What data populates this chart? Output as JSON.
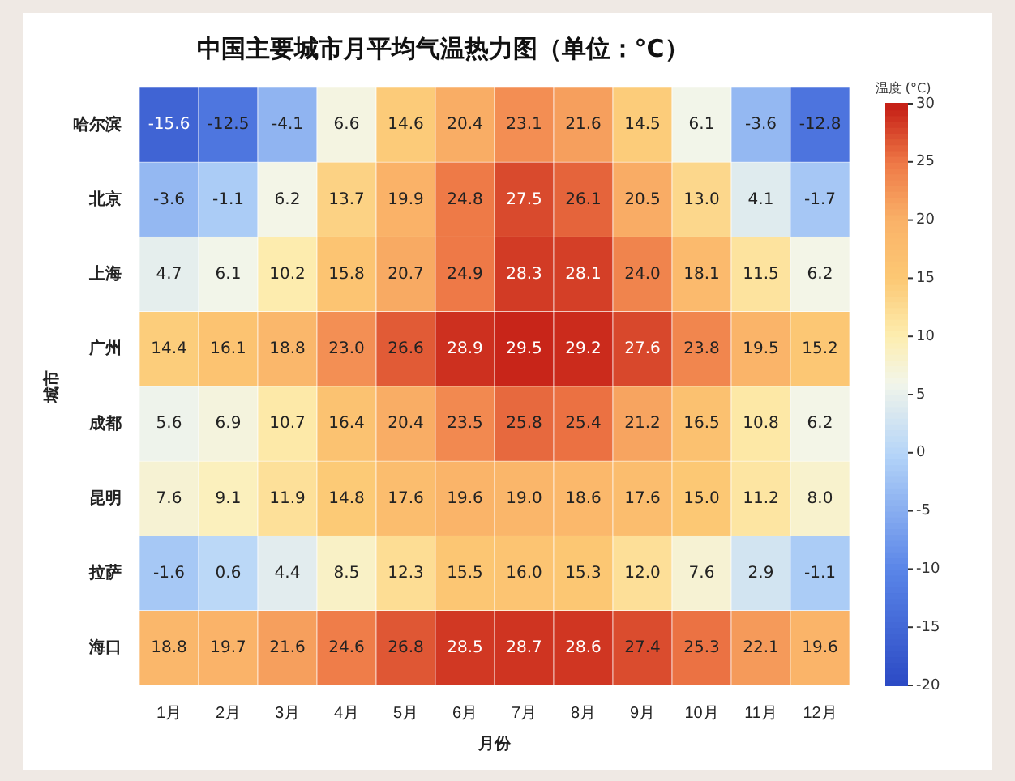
{
  "chart_data": {
    "type": "heatmap",
    "title": "中国主要城市月平均气温热力图（单位：°C）",
    "xlabel": "月份",
    "ylabel": "城市",
    "clabel": "温度 (°C)",
    "categories": [
      "1月",
      "2月",
      "3月",
      "4月",
      "5月",
      "6月",
      "7月",
      "8月",
      "9月",
      "10月",
      "11月",
      "12月"
    ],
    "y_categories": [
      "哈尔滨",
      "北京",
      "上海",
      "广州",
      "成都",
      "昆明",
      "拉萨",
      "海口"
    ],
    "cells": [
      [
        -15.6,
        -12.5,
        -4.1,
        6.6,
        14.6,
        20.4,
        23.1,
        21.6,
        14.5,
        6.1,
        -3.6,
        -12.8
      ],
      [
        -3.6,
        -1.1,
        6.2,
        13.7,
        19.9,
        24.8,
        27.5,
        26.1,
        20.5,
        13.0,
        4.1,
        -1.7
      ],
      [
        4.7,
        6.1,
        10.2,
        15.8,
        20.7,
        24.9,
        28.3,
        28.1,
        24.0,
        18.1,
        11.5,
        6.2
      ],
      [
        14.4,
        16.1,
        18.8,
        23.0,
        26.6,
        28.9,
        29.5,
        29.2,
        27.6,
        23.8,
        19.5,
        15.2
      ],
      [
        5.6,
        6.9,
        10.7,
        16.4,
        20.4,
        23.5,
        25.8,
        25.4,
        21.2,
        16.5,
        10.8,
        6.2
      ],
      [
        7.6,
        9.1,
        11.9,
        14.8,
        17.6,
        19.6,
        19.0,
        18.6,
        17.6,
        15.0,
        11.2,
        8.0
      ],
      [
        -1.6,
        0.6,
        4.4,
        8.5,
        12.3,
        15.5,
        16.0,
        15.3,
        12.0,
        7.6,
        2.9,
        -1.1
      ],
      [
        18.8,
        19.7,
        21.6,
        24.6,
        26.8,
        28.5,
        28.7,
        28.6,
        27.4,
        25.3,
        22.1,
        19.6
      ]
    ],
    "cell_labels": [
      [
        "-15.6",
        "-12.5",
        "-4.1",
        "6.6",
        "14.6",
        "20.4",
        "23.1",
        "21.6",
        "14.5",
        "6.1",
        "-3.6",
        "-12.8"
      ],
      [
        "-3.6",
        "-1.1",
        "6.2",
        "13.7",
        "19.9",
        "24.8",
        "27.5",
        "26.1",
        "20.5",
        "13.0",
        "4.1",
        "-1.7"
      ],
      [
        "4.7",
        "6.1",
        "10.2",
        "15.8",
        "20.7",
        "24.9",
        "28.3",
        "28.1",
        "24.0",
        "18.1",
        "11.5",
        "6.2"
      ],
      [
        "14.4",
        "16.1",
        "18.8",
        "23.0",
        "26.6",
        "28.9",
        "29.5",
        "29.2",
        "27.6",
        "23.8",
        "19.5",
        "15.2"
      ],
      [
        "5.6",
        "6.9",
        "10.7",
        "16.4",
        "20.4",
        "23.5",
        "25.8",
        "25.4",
        "21.2",
        "16.5",
        "10.8",
        "6.2"
      ],
      [
        "7.6",
        "9.1",
        "11.9",
        "14.8",
        "17.6",
        "19.6",
        "19.0",
        "18.6",
        "17.6",
        "15.0",
        "11.2",
        "8.0"
      ],
      [
        "-1.6",
        "0.6",
        "4.4",
        "8.5",
        "12.3",
        "15.5",
        "16.0",
        "15.3",
        "12.0",
        "7.6",
        "2.9",
        "-1.1"
      ],
      [
        "18.8",
        "19.7",
        "21.6",
        "24.6",
        "26.8",
        "28.5",
        "28.7",
        "28.6",
        "27.4",
        "25.3",
        "22.1",
        "19.6"
      ]
    ],
    "clim": [
      -20,
      30
    ],
    "cticks": [
      -20,
      -15,
      -10,
      -5,
      0,
      5,
      10,
      15,
      20,
      25,
      30
    ],
    "data_labels": true
  }
}
